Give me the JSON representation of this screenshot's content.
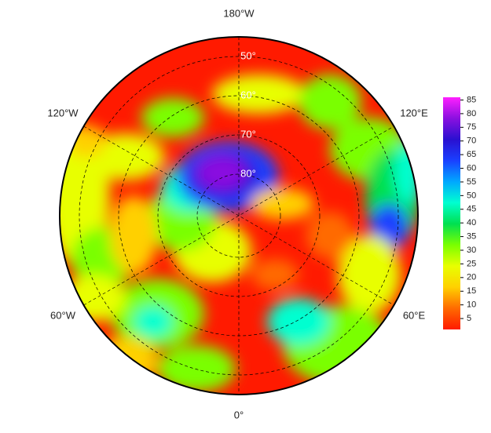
{
  "map": {
    "longitude_labels": [
      "180°W",
      "120°W",
      "120°E",
      "60°W",
      "60°E",
      "0°"
    ],
    "latitude_labels": [
      "50°",
      "60°",
      "70°",
      "80°"
    ]
  },
  "colorbar": {
    "lim": [
      1,
      86
    ],
    "ticks": [
      5,
      10,
      15,
      20,
      25,
      30,
      35,
      40,
      45,
      50,
      55,
      60,
      65,
      70,
      75,
      80,
      85
    ],
    "colormap": [
      "#ff1a00",
      "#ff6a00",
      "#ffd000",
      "#e8ff00",
      "#7aff00",
      "#00e050",
      "#00ffd0",
      "#00a8ff",
      "#1a40ff",
      "#2a10d0",
      "#8a10e0",
      "#ff20ff"
    ]
  }
}
